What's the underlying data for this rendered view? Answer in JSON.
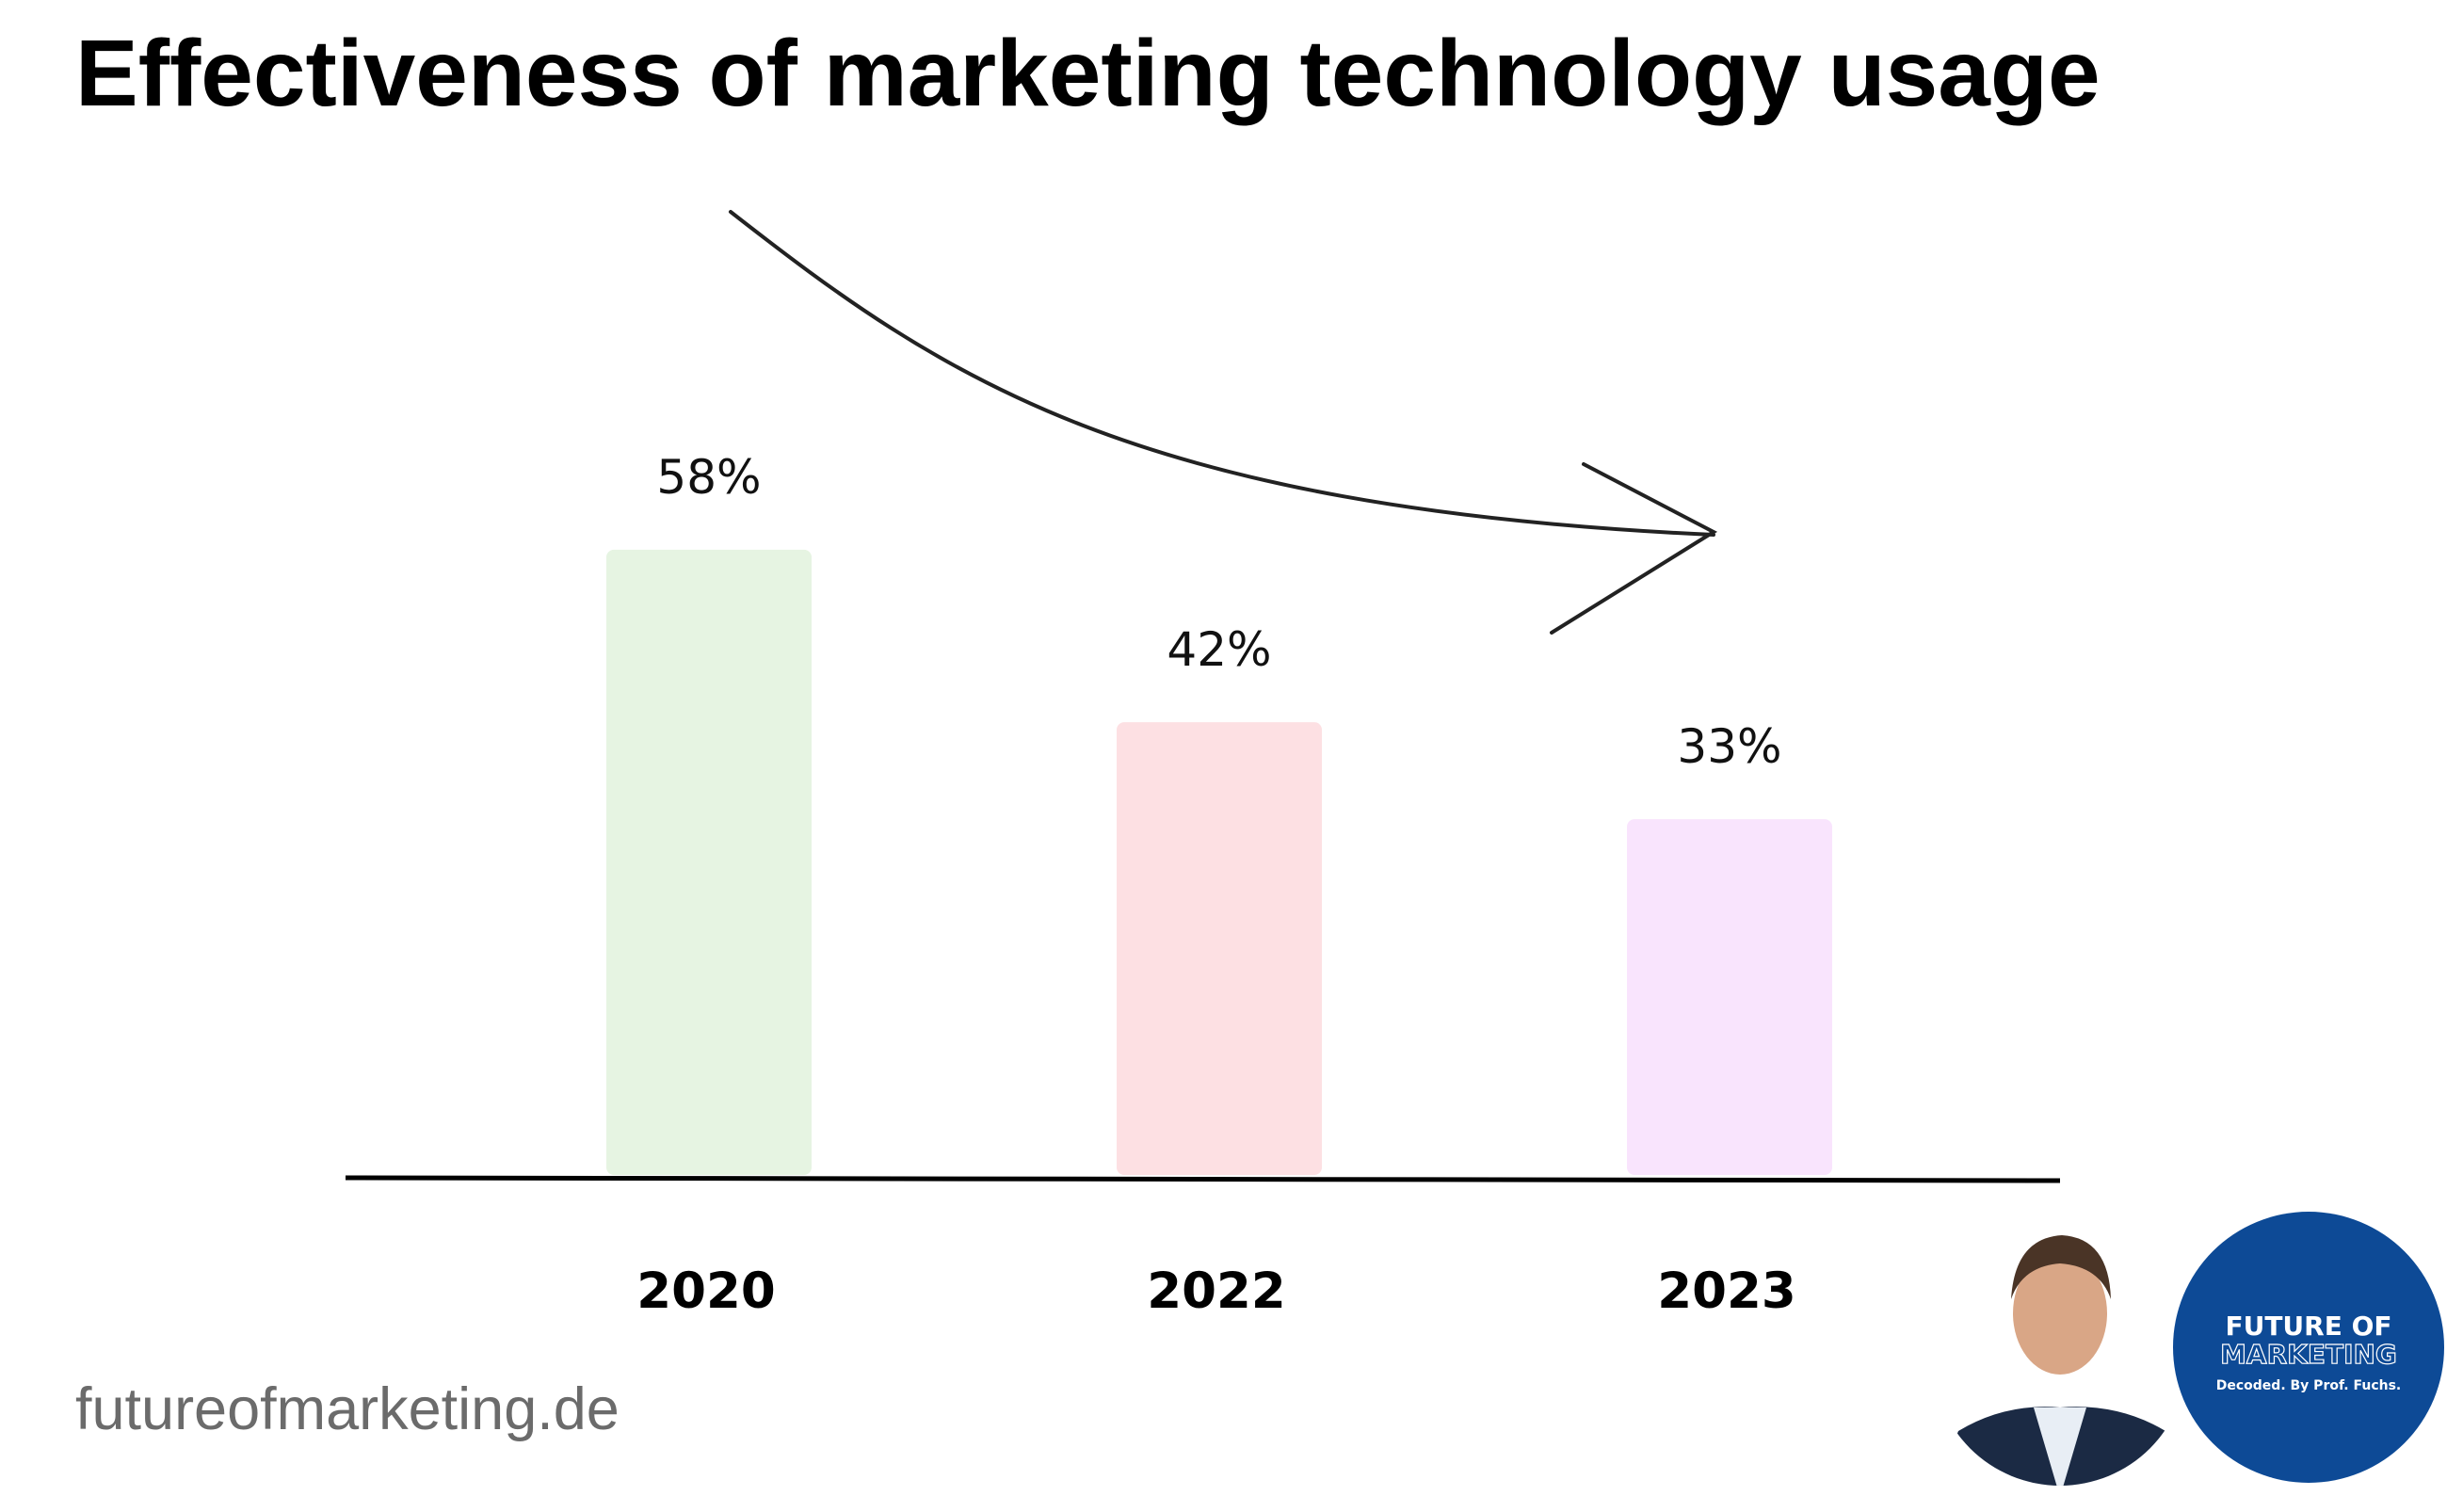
{
  "chart_data": {
    "type": "bar",
    "title": "Effectiveness of marketing technology usage",
    "categories": [
      "2020",
      "2022",
      "2023"
    ],
    "values": [
      58,
      42,
      33
    ],
    "value_labels": [
      "58%",
      "42%",
      "33%"
    ],
    "colors": [
      "#e6f4e2",
      "#fde0e3",
      "#f9e4fd"
    ]
  },
  "footer": "futureofmarketing.de",
  "logo": {
    "line1": "FUTURE OF",
    "line2": "MARKETING",
    "tagline": "Decoded. By Prof. Fuchs."
  }
}
